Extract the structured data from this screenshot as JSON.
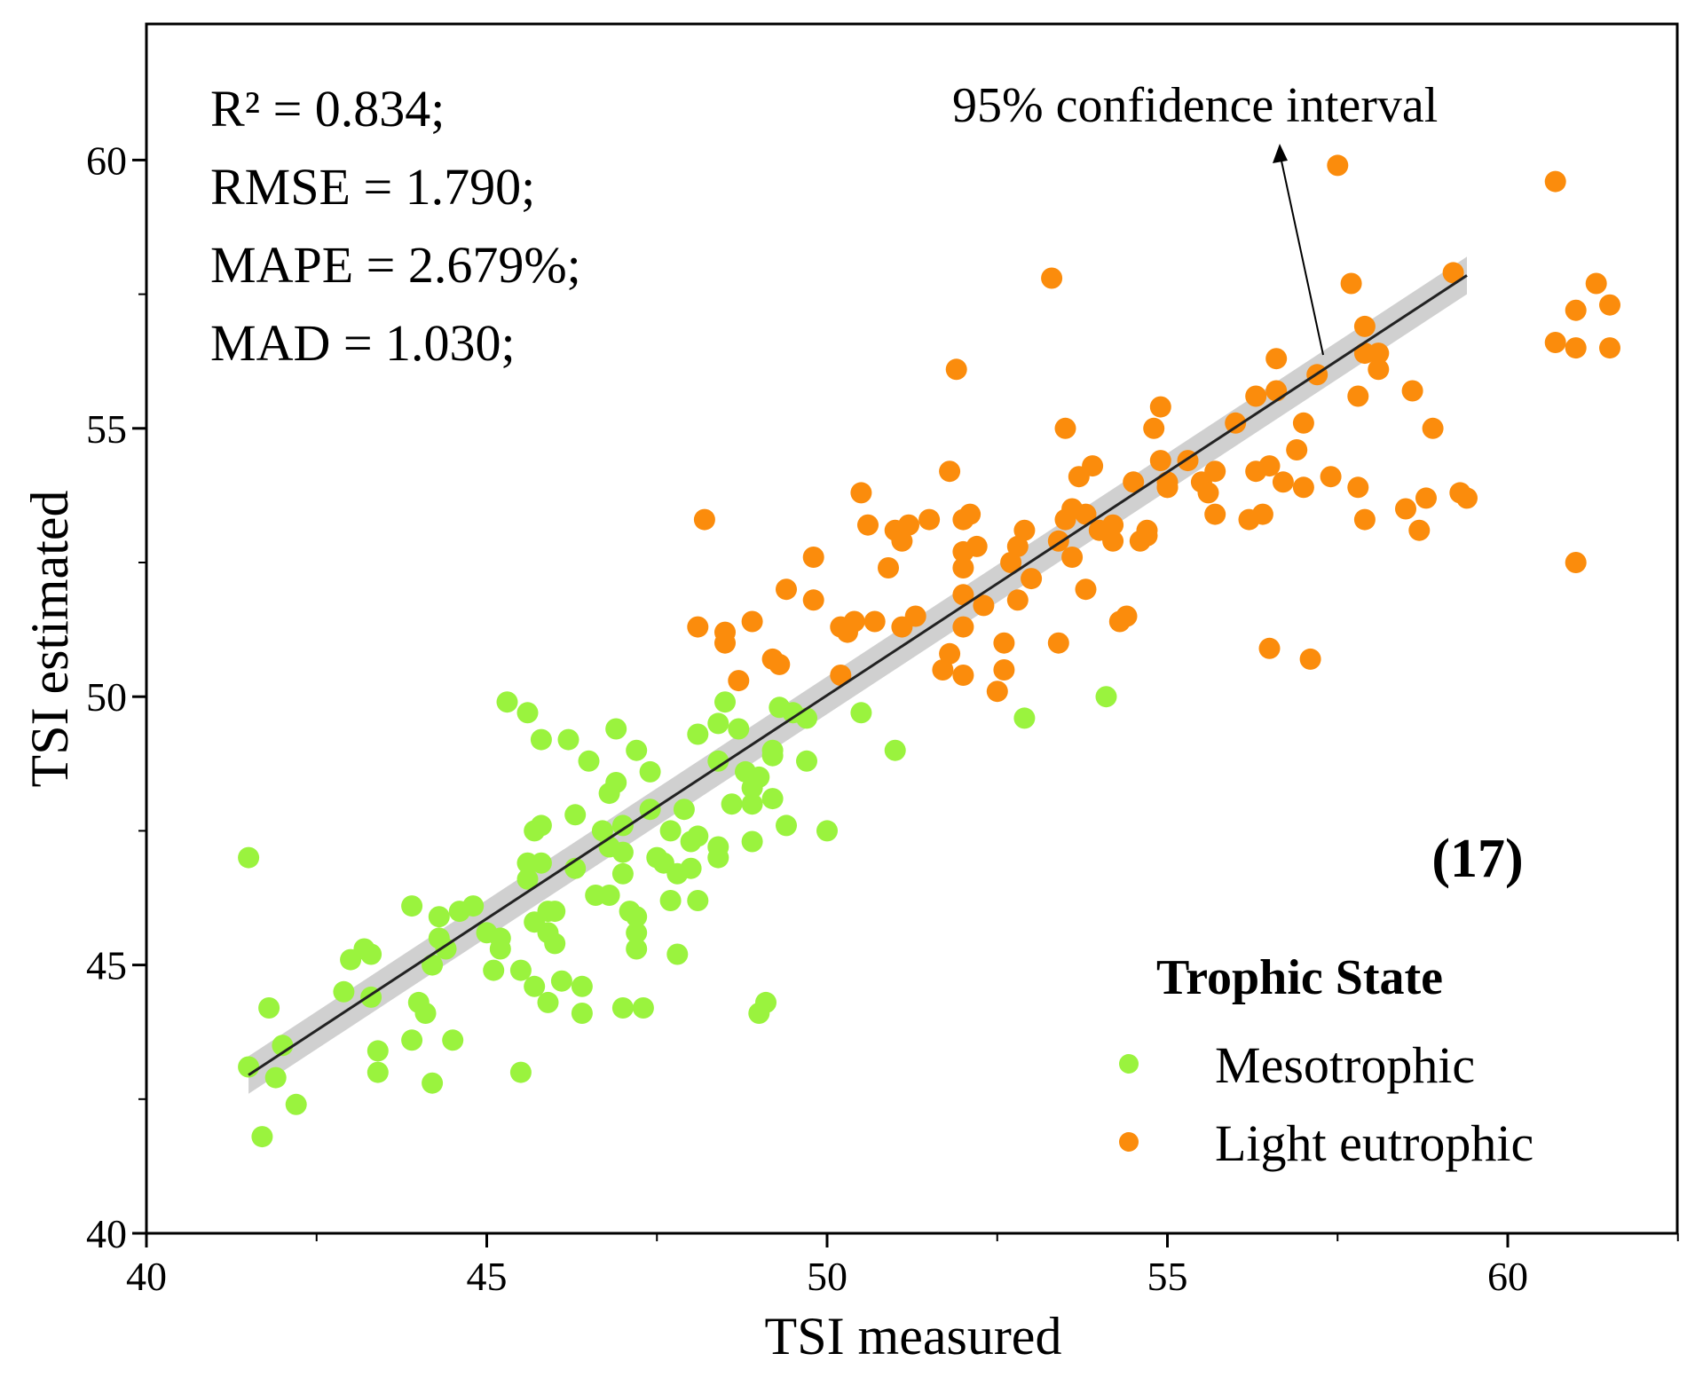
{
  "chart_data": {
    "type": "scatter",
    "xlabel": "TSI measured",
    "ylabel": "TSI estimated",
    "xlim": [
      40,
      62.6
    ],
    "ylim": [
      40,
      62.5
    ],
    "xticks": [
      40,
      45,
      50,
      55,
      60
    ],
    "yticks": [
      40,
      45,
      50,
      55,
      60
    ],
    "xticks_labels": [
      "40",
      "45",
      "50",
      "55",
      "60"
    ],
    "yticks_labels": [
      "40",
      "45",
      "50",
      "55",
      "60"
    ],
    "stats": [
      "R² = 0.834;",
      "RMSE = 1.790;",
      "MAPE = 2.679%;",
      "MAD = 1.030;"
    ],
    "annotation": {
      "text": "95% confidence interval",
      "target": [
        57.3,
        56.3
      ]
    },
    "panel_tag": "(17)",
    "legend": {
      "title": "Trophic State",
      "position": "bottom-right"
    },
    "fit": {
      "x": [
        41.5,
        59.4
      ],
      "y": [
        42.95,
        57.85
      ],
      "ci_halfwidth": 0.35
    },
    "colors": {
      "mesotrophic": "#9af33e",
      "light_eutrophic": "#fb8c0c",
      "fit": "#222222",
      "ci": "#c8c8c8",
      "axis": "#000000"
    },
    "series": [
      {
        "name": "Mesotrophic",
        "color": "#9af33e",
        "points": [
          [
            41.5,
            47.0
          ],
          [
            41.5,
            43.1
          ],
          [
            41.7,
            41.8
          ],
          [
            41.8,
            44.2
          ],
          [
            41.9,
            42.9
          ],
          [
            42.0,
            43.5
          ],
          [
            42.2,
            42.4
          ],
          [
            42.9,
            44.5
          ],
          [
            43.0,
            45.1
          ],
          [
            43.2,
            45.3
          ],
          [
            43.3,
            45.2
          ],
          [
            43.3,
            44.4
          ],
          [
            43.4,
            43.4
          ],
          [
            43.4,
            43.0
          ],
          [
            43.9,
            43.6
          ],
          [
            43.9,
            46.1
          ],
          [
            44.0,
            44.3
          ],
          [
            44.1,
            44.1
          ],
          [
            44.2,
            42.8
          ],
          [
            44.2,
            45.0
          ],
          [
            44.3,
            45.5
          ],
          [
            44.3,
            45.9
          ],
          [
            44.4,
            45.3
          ],
          [
            44.5,
            43.6
          ],
          [
            44.6,
            46.0
          ],
          [
            44.8,
            46.1
          ],
          [
            45.0,
            45.6
          ],
          [
            45.1,
            44.9
          ],
          [
            45.2,
            45.3
          ],
          [
            45.2,
            45.5
          ],
          [
            45.3,
            49.9
          ],
          [
            45.5,
            44.9
          ],
          [
            45.5,
            43.0
          ],
          [
            45.6,
            49.7
          ],
          [
            45.6,
            46.6
          ],
          [
            45.6,
            46.9
          ],
          [
            45.7,
            47.5
          ],
          [
            45.7,
            45.8
          ],
          [
            45.7,
            44.6
          ],
          [
            45.8,
            49.2
          ],
          [
            45.8,
            47.6
          ],
          [
            45.8,
            46.9
          ],
          [
            45.9,
            46.0
          ],
          [
            45.9,
            45.6
          ],
          [
            45.9,
            44.3
          ],
          [
            46.0,
            46.0
          ],
          [
            46.0,
            45.4
          ],
          [
            46.1,
            44.7
          ],
          [
            46.2,
            49.2
          ],
          [
            46.3,
            46.8
          ],
          [
            46.3,
            47.8
          ],
          [
            46.4,
            44.1
          ],
          [
            46.4,
            44.6
          ],
          [
            46.5,
            48.8
          ],
          [
            46.6,
            46.3
          ],
          [
            46.7,
            47.5
          ],
          [
            46.8,
            47.2
          ],
          [
            46.8,
            48.2
          ],
          [
            46.8,
            46.3
          ],
          [
            46.9,
            49.4
          ],
          [
            46.9,
            48.4
          ],
          [
            47.0,
            47.6
          ],
          [
            47.0,
            47.1
          ],
          [
            47.0,
            46.7
          ],
          [
            47.1,
            46.0
          ],
          [
            47.2,
            45.9
          ],
          [
            47.2,
            45.6
          ],
          [
            47.2,
            45.3
          ],
          [
            47.2,
            49.0
          ],
          [
            47.3,
            44.2
          ],
          [
            47.4,
            48.6
          ],
          [
            47.4,
            47.9
          ],
          [
            47.5,
            47.0
          ],
          [
            47.6,
            46.9
          ],
          [
            47.7,
            47.5
          ],
          [
            47.7,
            46.2
          ],
          [
            47.8,
            46.7
          ],
          [
            47.8,
            45.2
          ],
          [
            47.9,
            47.9
          ],
          [
            48.0,
            47.3
          ],
          [
            48.0,
            46.8
          ],
          [
            48.1,
            47.4
          ],
          [
            48.1,
            46.2
          ],
          [
            48.1,
            49.3
          ],
          [
            48.4,
            49.5
          ],
          [
            48.4,
            48.8
          ],
          [
            48.4,
            47.2
          ],
          [
            48.4,
            47.0
          ],
          [
            48.5,
            49.9
          ],
          [
            48.6,
            48.0
          ],
          [
            48.7,
            49.4
          ],
          [
            48.8,
            48.6
          ],
          [
            48.9,
            48.3
          ],
          [
            48.9,
            48.0
          ],
          [
            48.9,
            47.3
          ],
          [
            49.0,
            48.5
          ],
          [
            49.2,
            48.1
          ],
          [
            49.2,
            48.9
          ],
          [
            49.2,
            49.0
          ],
          [
            49.3,
            49.8
          ],
          [
            49.4,
            47.6
          ],
          [
            49.5,
            49.7
          ],
          [
            49.7,
            48.8
          ],
          [
            49.7,
            49.6
          ],
          [
            50.0,
            47.5
          ],
          [
            50.5,
            49.7
          ],
          [
            51.0,
            49.0
          ],
          [
            52.9,
            49.6
          ],
          [
            54.1,
            50.0
          ],
          [
            49.0,
            44.1
          ],
          [
            49.1,
            44.3
          ],
          [
            47.0,
            44.2
          ]
        ]
      },
      {
        "name": "Light eutrophic",
        "color": "#fb8c0c",
        "points": [
          [
            48.1,
            51.3
          ],
          [
            48.2,
            53.3
          ],
          [
            48.5,
            51.0
          ],
          [
            48.5,
            51.2
          ],
          [
            48.7,
            50.3
          ],
          [
            48.9,
            51.4
          ],
          [
            49.2,
            50.7
          ],
          [
            49.3,
            50.6
          ],
          [
            49.4,
            52.0
          ],
          [
            49.8,
            52.6
          ],
          [
            49.8,
            51.8
          ],
          [
            50.2,
            50.4
          ],
          [
            50.2,
            51.3
          ],
          [
            50.3,
            51.2
          ],
          [
            50.4,
            51.4
          ],
          [
            50.5,
            53.8
          ],
          [
            50.6,
            53.2
          ],
          [
            50.7,
            51.4
          ],
          [
            50.9,
            52.4
          ],
          [
            51.0,
            53.1
          ],
          [
            51.1,
            51.3
          ],
          [
            51.1,
            52.9
          ],
          [
            51.2,
            53.2
          ],
          [
            51.3,
            51.5
          ],
          [
            51.5,
            53.3
          ],
          [
            51.7,
            50.5
          ],
          [
            51.8,
            50.8
          ],
          [
            51.8,
            54.2
          ],
          [
            51.9,
            56.1
          ],
          [
            52.0,
            53.3
          ],
          [
            52.0,
            52.7
          ],
          [
            52.0,
            52.4
          ],
          [
            52.0,
            51.9
          ],
          [
            52.0,
            51.3
          ],
          [
            52.0,
            50.4
          ],
          [
            52.1,
            53.4
          ],
          [
            52.2,
            52.8
          ],
          [
            52.3,
            51.7
          ],
          [
            52.5,
            50.1
          ],
          [
            52.6,
            50.5
          ],
          [
            52.6,
            51.0
          ],
          [
            52.7,
            52.5
          ],
          [
            52.8,
            52.8
          ],
          [
            52.8,
            51.8
          ],
          [
            52.9,
            53.1
          ],
          [
            53.0,
            52.2
          ],
          [
            53.3,
            57.8
          ],
          [
            53.4,
            51.0
          ],
          [
            53.4,
            52.9
          ],
          [
            53.5,
            55.0
          ],
          [
            53.5,
            53.3
          ],
          [
            53.6,
            53.5
          ],
          [
            53.6,
            52.6
          ],
          [
            53.7,
            54.1
          ],
          [
            53.8,
            52.0
          ],
          [
            53.8,
            53.4
          ],
          [
            53.9,
            54.3
          ],
          [
            54.0,
            53.1
          ],
          [
            54.2,
            53.2
          ],
          [
            54.2,
            52.9
          ],
          [
            54.3,
            51.4
          ],
          [
            54.4,
            51.5
          ],
          [
            54.5,
            54.0
          ],
          [
            54.6,
            52.9
          ],
          [
            54.7,
            53.1
          ],
          [
            54.7,
            53.0
          ],
          [
            54.8,
            55.0
          ],
          [
            54.9,
            55.4
          ],
          [
            54.9,
            54.4
          ],
          [
            55.0,
            53.9
          ],
          [
            55.0,
            53.9
          ],
          [
            55.0,
            54.0
          ],
          [
            55.3,
            54.4
          ],
          [
            55.5,
            54.0
          ],
          [
            55.6,
            53.8
          ],
          [
            55.7,
            54.2
          ],
          [
            55.7,
            53.4
          ],
          [
            56.0,
            55.1
          ],
          [
            56.2,
            53.3
          ],
          [
            56.3,
            55.6
          ],
          [
            56.3,
            54.2
          ],
          [
            56.4,
            53.4
          ],
          [
            56.5,
            50.9
          ],
          [
            56.5,
            54.3
          ],
          [
            56.6,
            55.7
          ],
          [
            56.6,
            56.3
          ],
          [
            56.7,
            54.0
          ],
          [
            56.9,
            54.6
          ],
          [
            57.0,
            53.9
          ],
          [
            57.0,
            55.1
          ],
          [
            57.1,
            50.7
          ],
          [
            57.2,
            56.0
          ],
          [
            57.4,
            54.1
          ],
          [
            57.8,
            55.6
          ],
          [
            57.8,
            53.9
          ],
          [
            57.9,
            56.4
          ],
          [
            57.9,
            56.9
          ],
          [
            57.9,
            53.3
          ],
          [
            58.1,
            56.1
          ],
          [
            58.1,
            56.4
          ],
          [
            58.5,
            53.5
          ],
          [
            58.6,
            55.7
          ],
          [
            58.7,
            53.1
          ],
          [
            58.8,
            53.7
          ],
          [
            58.9,
            55.0
          ],
          [
            59.2,
            57.9
          ],
          [
            59.3,
            53.8
          ],
          [
            59.4,
            53.7
          ],
          [
            57.5,
            59.9
          ],
          [
            57.7,
            57.7
          ],
          [
            60.7,
            59.6
          ],
          [
            60.7,
            56.6
          ],
          [
            61.0,
            52.5
          ],
          [
            61.0,
            56.5
          ],
          [
            61.0,
            57.2
          ],
          [
            61.3,
            57.7
          ],
          [
            61.5,
            56.5
          ],
          [
            61.5,
            57.3
          ]
        ]
      }
    ]
  }
}
